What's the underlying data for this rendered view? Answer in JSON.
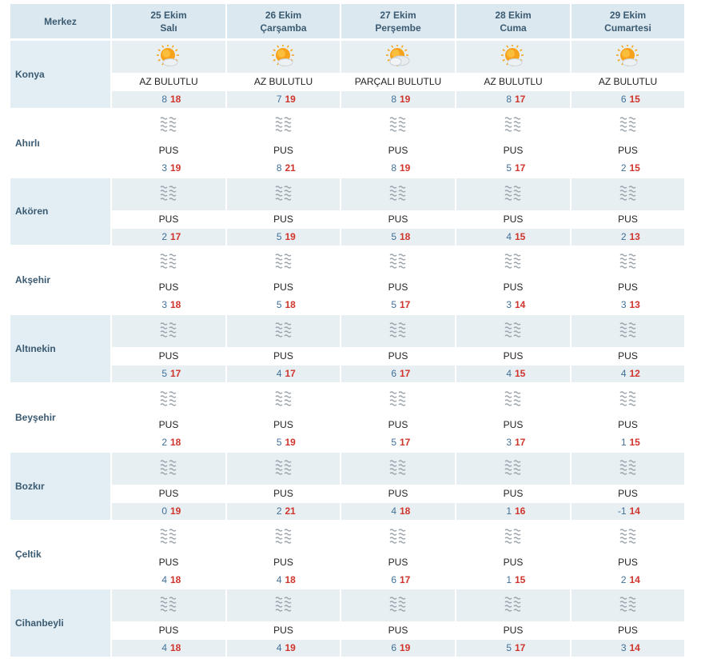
{
  "header": {
    "region_label": "Merkez",
    "days": [
      {
        "date": "25 Ekim",
        "weekday": "Salı"
      },
      {
        "date": "26 Ekim",
        "weekday": "Çarşamba"
      },
      {
        "date": "27 Ekim",
        "weekday": "Perşembe"
      },
      {
        "date": "28 Ekim",
        "weekday": "Cuma"
      },
      {
        "date": "29 Ekim",
        "weekday": "Cumartesi"
      }
    ]
  },
  "cities": [
    {
      "name": "Konya",
      "days": [
        {
          "icon": "partly-sunny-icon",
          "condition": "AZ BULUTLU",
          "min": "8",
          "max": "18"
        },
        {
          "icon": "partly-sunny-icon",
          "condition": "AZ BULUTLU",
          "min": "7",
          "max": "19"
        },
        {
          "icon": "cloudy-sun-icon",
          "condition": "PARÇALI BULUTLU",
          "min": "8",
          "max": "19"
        },
        {
          "icon": "partly-sunny-icon",
          "condition": "AZ BULUTLU",
          "min": "8",
          "max": "17"
        },
        {
          "icon": "partly-sunny-icon",
          "condition": "AZ BULUTLU",
          "min": "6",
          "max": "15"
        }
      ]
    },
    {
      "name": "Ahırlı",
      "days": [
        {
          "icon": "haze-icon",
          "condition": "PUS",
          "min": "3",
          "max": "19"
        },
        {
          "icon": "haze-icon",
          "condition": "PUS",
          "min": "8",
          "max": "21"
        },
        {
          "icon": "haze-icon",
          "condition": "PUS",
          "min": "8",
          "max": "19"
        },
        {
          "icon": "haze-icon",
          "condition": "PUS",
          "min": "5",
          "max": "17"
        },
        {
          "icon": "haze-icon",
          "condition": "PUS",
          "min": "2",
          "max": "15"
        }
      ]
    },
    {
      "name": "Akören",
      "days": [
        {
          "icon": "haze-icon",
          "condition": "PUS",
          "min": "2",
          "max": "17"
        },
        {
          "icon": "haze-icon",
          "condition": "PUS",
          "min": "5",
          "max": "19"
        },
        {
          "icon": "haze-icon",
          "condition": "PUS",
          "min": "5",
          "max": "18"
        },
        {
          "icon": "haze-icon",
          "condition": "PUS",
          "min": "4",
          "max": "15"
        },
        {
          "icon": "haze-icon",
          "condition": "PUS",
          "min": "2",
          "max": "13"
        }
      ]
    },
    {
      "name": "Akşehir",
      "days": [
        {
          "icon": "haze-icon",
          "condition": "PUS",
          "min": "3",
          "max": "18"
        },
        {
          "icon": "haze-icon",
          "condition": "PUS",
          "min": "5",
          "max": "18"
        },
        {
          "icon": "haze-icon",
          "condition": "PUS",
          "min": "5",
          "max": "17"
        },
        {
          "icon": "haze-icon",
          "condition": "PUS",
          "min": "3",
          "max": "14"
        },
        {
          "icon": "haze-icon",
          "condition": "PUS",
          "min": "3",
          "max": "13"
        }
      ]
    },
    {
      "name": "Altınekin",
      "days": [
        {
          "icon": "haze-icon",
          "condition": "PUS",
          "min": "5",
          "max": "17"
        },
        {
          "icon": "haze-icon",
          "condition": "PUS",
          "min": "4",
          "max": "17"
        },
        {
          "icon": "haze-icon",
          "condition": "PUS",
          "min": "6",
          "max": "17"
        },
        {
          "icon": "haze-icon",
          "condition": "PUS",
          "min": "4",
          "max": "15"
        },
        {
          "icon": "haze-icon",
          "condition": "PUS",
          "min": "4",
          "max": "12"
        }
      ]
    },
    {
      "name": "Beyşehir",
      "days": [
        {
          "icon": "haze-icon",
          "condition": "PUS",
          "min": "2",
          "max": "18"
        },
        {
          "icon": "haze-icon",
          "condition": "PUS",
          "min": "5",
          "max": "19"
        },
        {
          "icon": "haze-icon",
          "condition": "PUS",
          "min": "5",
          "max": "17"
        },
        {
          "icon": "haze-icon",
          "condition": "PUS",
          "min": "3",
          "max": "17"
        },
        {
          "icon": "haze-icon",
          "condition": "PUS",
          "min": "1",
          "max": "15"
        }
      ]
    },
    {
      "name": "Bozkır",
      "days": [
        {
          "icon": "haze-icon",
          "condition": "PUS",
          "min": "0",
          "max": "19"
        },
        {
          "icon": "haze-icon",
          "condition": "PUS",
          "min": "2",
          "max": "21"
        },
        {
          "icon": "haze-icon",
          "condition": "PUS",
          "min": "4",
          "max": "18"
        },
        {
          "icon": "haze-icon",
          "condition": "PUS",
          "min": "1",
          "max": "16"
        },
        {
          "icon": "haze-icon",
          "condition": "PUS",
          "min": "-1",
          "max": "14"
        }
      ]
    },
    {
      "name": "Çeltik",
      "days": [
        {
          "icon": "haze-icon",
          "condition": "PUS",
          "min": "4",
          "max": "18"
        },
        {
          "icon": "haze-icon",
          "condition": "PUS",
          "min": "4",
          "max": "18"
        },
        {
          "icon": "haze-icon",
          "condition": "PUS",
          "min": "6",
          "max": "17"
        },
        {
          "icon": "haze-icon",
          "condition": "PUS",
          "min": "1",
          "max": "15"
        },
        {
          "icon": "haze-icon",
          "condition": "PUS",
          "min": "2",
          "max": "14"
        }
      ]
    },
    {
      "name": "Cihanbeyli",
      "days": [
        {
          "icon": "haze-icon",
          "condition": "PUS",
          "min": "4",
          "max": "18"
        },
        {
          "icon": "haze-icon",
          "condition": "PUS",
          "min": "4",
          "max": "19"
        },
        {
          "icon": "haze-icon",
          "condition": "PUS",
          "min": "6",
          "max": "19"
        },
        {
          "icon": "haze-icon",
          "condition": "PUS",
          "min": "5",
          "max": "17"
        },
        {
          "icon": "haze-icon",
          "condition": "PUS",
          "min": "3",
          "max": "14"
        }
      ]
    }
  ],
  "colors": {
    "header_bg": "#dce8ef",
    "tint_bg": "#e7eff3",
    "label_text": "#3a5a72",
    "min_temp": "#3f6f98",
    "max_temp": "#d0342c"
  }
}
